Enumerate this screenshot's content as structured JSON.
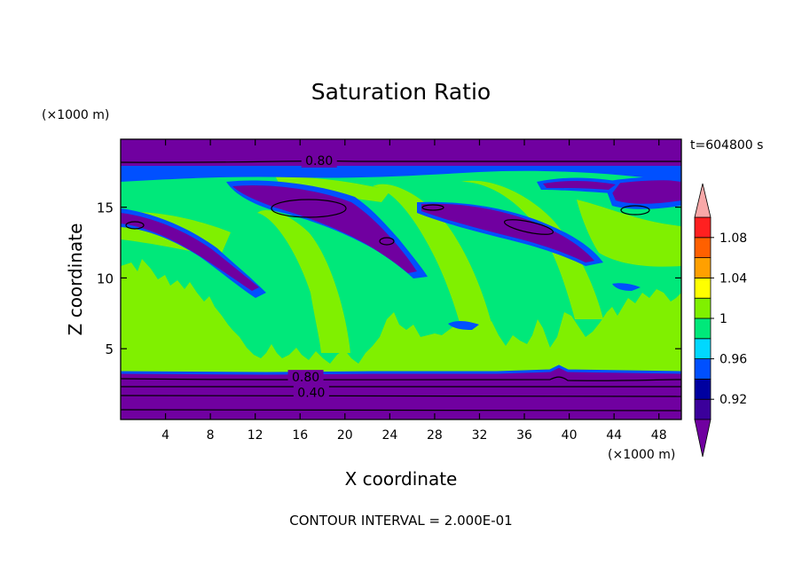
{
  "chart_data": {
    "type": "heatmap",
    "title": "Saturation Ratio",
    "xlabel": "X coordinate",
    "ylabel": "Z coordinate",
    "x_unit": "(×1000 m)",
    "y_unit": "(×1000 m)",
    "time_label": "t=604800 s",
    "footer": "CONTOUR INTERVAL = 2.000E-01",
    "xlim": [
      0,
      50
    ],
    "ylim": [
      0,
      19.8
    ],
    "x_ticks": [
      4,
      8,
      12,
      16,
      20,
      24,
      28,
      32,
      36,
      40,
      44,
      48
    ],
    "y_ticks": [
      5,
      10,
      15
    ],
    "contour_labels": [
      {
        "text": "0.80",
        "x": 17.7,
        "y": 18.3
      },
      {
        "text": "0.80",
        "x": 16.5,
        "y": 3.0
      },
      {
        "text": "0.40",
        "x": 17.0,
        "y": 1.9
      }
    ],
    "colorbar": {
      "levels": [
        0.9,
        0.92,
        0.94,
        0.96,
        0.98,
        1.0,
        1.02,
        1.04,
        1.06,
        1.08,
        1.1
      ],
      "labels": [
        "0.92",
        "0.96",
        "1",
        "1.04",
        "1.08"
      ],
      "colors": [
        "#3b009b",
        "#0000a0",
        "#0050ff",
        "#00d8ff",
        "#00e87a",
        "#80f000",
        "#ffff00",
        "#ffa000",
        "#ff6000",
        "#ff2020"
      ],
      "under_color": "#7000a0",
      "over_color": "#f8a8a8"
    },
    "regions": {
      "background_color": "#00e87a",
      "lower_layer": {
        "top": 3.3,
        "color": "#7000a0"
      },
      "upper_layer": {
        "bottom": 18.3,
        "color": "#7000a0"
      },
      "lower_clouds_color": "#80f000",
      "dry_bands_color": "#7000a0"
    }
  }
}
